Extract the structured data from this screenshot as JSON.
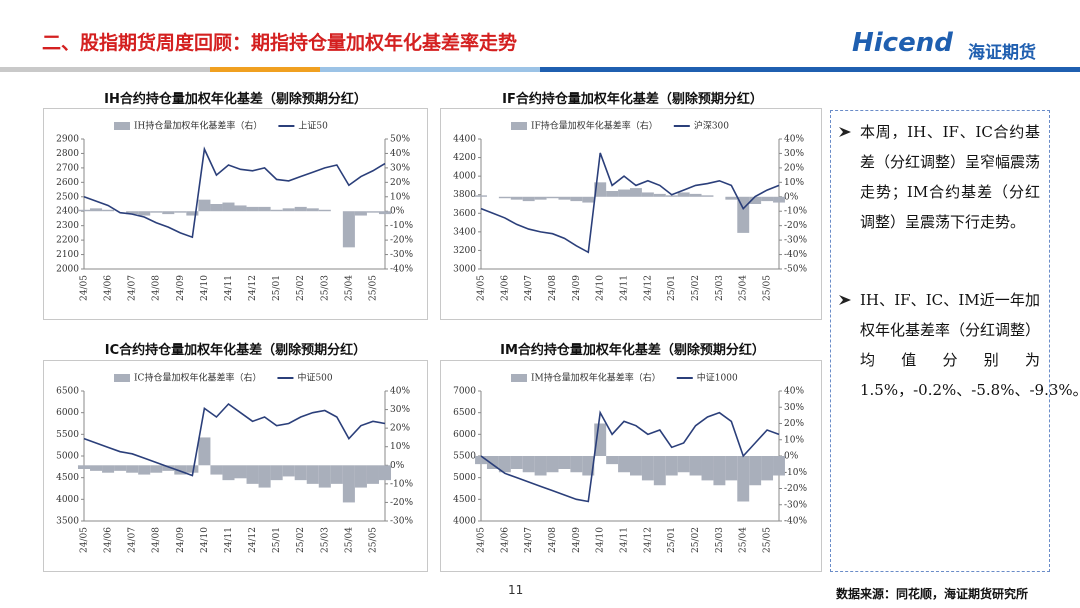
{
  "header": {
    "title": "二、股指期货周度回顾：期指持仓量加权年化基差率走势",
    "logo_en": "Hicend",
    "logo_cn": "海证期货"
  },
  "sidebar": {
    "bullets": [
      "本周，IH、IF、IC合约基差（分红调整）呈窄幅震荡走势；IM合约基差（分红调整）呈震荡下行走势。",
      "IH、IF、IC、IM近一年加权年化基差率（分红调整）均值分别为1.5%，-0.2%、-5.8%、-9.3%。"
    ]
  },
  "footer": {
    "page": "11",
    "source": "数据来源：同花顺，海证期货研究所"
  },
  "chart_data": [
    {
      "type": "combo",
      "title": "IH合约持仓量加权年化基差（剔除预期分红）",
      "categories": [
        "24/05",
        null,
        "24/06",
        null,
        "24/07",
        null,
        "24/08",
        null,
        "24/09",
        null,
        "24/10",
        null,
        "24/11",
        null,
        "24/12",
        null,
        "25/01",
        null,
        "25/02",
        null,
        "25/03",
        null,
        "25/04",
        null,
        "25/05",
        null
      ],
      "series": [
        {
          "name": "IH持仓量加权年化基差率（右）",
          "color": "#a9afbb",
          "axis": "y2",
          "values": [
            1,
            2,
            1,
            0,
            -2,
            -3,
            -1,
            -2,
            -1,
            -3,
            8,
            5,
            6,
            4,
            3,
            3,
            1,
            2,
            3,
            2,
            1,
            0,
            -25,
            -3,
            -1,
            -2
          ]
        },
        {
          "name": "上证50",
          "color": "#2b3f7a",
          "values": [
            2500,
            2470,
            2440,
            2390,
            2380,
            2360,
            2320,
            2290,
            2250,
            2220,
            2830,
            2650,
            2720,
            2690,
            2680,
            2700,
            2620,
            2610,
            2640,
            2670,
            2700,
            2720,
            2580,
            2640,
            2680,
            2730
          ]
        }
      ],
      "ylim": [
        2000,
        2900
      ],
      "yticks": [
        2000,
        2100,
        2200,
        2300,
        2400,
        2500,
        2600,
        2700,
        2800,
        2900
      ],
      "y2lim": [
        -40,
        50
      ],
      "y2ticks": [
        {
          "value": -40,
          "label": "-40%"
        },
        {
          "value": -30,
          "label": "-30%"
        },
        {
          "value": -20,
          "label": "-20%"
        },
        {
          "value": -10,
          "label": "-10%"
        },
        {
          "value": 0,
          "label": "0%"
        },
        {
          "value": 10,
          "label": "10%"
        },
        {
          "value": 20,
          "label": "20%"
        },
        {
          "value": 30,
          "label": "30%"
        },
        {
          "value": 40,
          "label": "40%"
        },
        {
          "value": 50,
          "label": "50%"
        }
      ]
    },
    {
      "type": "combo",
      "title": "IF合约持仓量加权年化基差（剔除预期分红）",
      "categories": [
        "24/05",
        null,
        "24/06",
        null,
        "24/07",
        null,
        "24/08",
        null,
        "24/09",
        null,
        "24/10",
        null,
        "24/11",
        null,
        "24/12",
        null,
        "25/01",
        null,
        "25/02",
        null,
        "25/03",
        null,
        "25/04",
        null,
        "25/05",
        null
      ],
      "series": [
        {
          "name": "IF持仓量加权年化基差率（右）",
          "color": "#a9afbb",
          "axis": "y2",
          "values": [
            1,
            0,
            -1,
            -2,
            -3,
            -2,
            -1,
            -2,
            -3,
            -4,
            10,
            4,
            5,
            6,
            3,
            2,
            1,
            3,
            2,
            1,
            0,
            -2,
            -25,
            -5,
            -3,
            -4
          ]
        },
        {
          "name": "沪深300",
          "color": "#2b3f7a",
          "values": [
            3650,
            3600,
            3550,
            3480,
            3430,
            3400,
            3380,
            3330,
            3250,
            3180,
            4250,
            3900,
            4000,
            3900,
            3950,
            3900,
            3800,
            3850,
            3900,
            3920,
            3950,
            3900,
            3650,
            3780,
            3850,
            3900
          ]
        }
      ],
      "ylim": [
        3000,
        4400
      ],
      "yticks": [
        3000,
        3200,
        3400,
        3600,
        3800,
        4000,
        4200,
        4400
      ],
      "y2lim": [
        -50,
        40
      ],
      "y2ticks": [
        {
          "value": -50,
          "label": "-50%"
        },
        {
          "value": -40,
          "label": "-40%"
        },
        {
          "value": -30,
          "label": "-30%"
        },
        {
          "value": -20,
          "label": "-20%"
        },
        {
          "value": -10,
          "label": "-10%"
        },
        {
          "value": 0,
          "label": "0%"
        },
        {
          "value": 10,
          "label": "10%"
        },
        {
          "value": 20,
          "label": "20%"
        },
        {
          "value": 30,
          "label": "30%"
        },
        {
          "value": 40,
          "label": "40%"
        }
      ]
    },
    {
      "type": "combo",
      "title": "IC合约持仓量加权年化基差（剔除预期分红）",
      "categories": [
        "24/05",
        null,
        "24/06",
        null,
        "24/07",
        null,
        "24/08",
        null,
        "24/09",
        null,
        "24/10",
        null,
        "24/11",
        null,
        "24/12",
        null,
        "25/01",
        null,
        "25/02",
        null,
        "25/03",
        null,
        "25/04",
        null,
        "25/05",
        null
      ],
      "series": [
        {
          "name": "IC持仓量加权年化基差率（右）",
          "color": "#a9afbb",
          "axis": "y2",
          "values": [
            -2,
            -3,
            -4,
            -3,
            -4,
            -5,
            -4,
            -3,
            -5,
            -4,
            15,
            -5,
            -8,
            -7,
            -10,
            -12,
            -8,
            -6,
            -8,
            -10,
            -12,
            -10,
            -20,
            -12,
            -10,
            -8
          ]
        },
        {
          "name": "中证500",
          "color": "#2b3f7a",
          "values": [
            5400,
            5300,
            5200,
            5100,
            5050,
            4950,
            4850,
            4750,
            4650,
            4550,
            6100,
            5900,
            6200,
            6000,
            5800,
            5900,
            5700,
            5750,
            5900,
            6000,
            6050,
            5900,
            5400,
            5700,
            5800,
            5750
          ]
        }
      ],
      "ylim": [
        3500,
        6500
      ],
      "yticks": [
        3500,
        4000,
        4500,
        5000,
        5500,
        6000,
        6500
      ],
      "y2lim": [
        -30,
        40
      ],
      "y2ticks": [
        {
          "value": -30,
          "label": "-30%"
        },
        {
          "value": -20,
          "label": "-20%"
        },
        {
          "value": -10,
          "label": "-10%"
        },
        {
          "value": 0,
          "label": "0%"
        },
        {
          "value": 10,
          "label": "10%"
        },
        {
          "value": 20,
          "label": "20%"
        },
        {
          "value": 30,
          "label": "30%"
        },
        {
          "value": 40,
          "label": "40%"
        }
      ]
    },
    {
      "type": "combo",
      "title": "IM合约持仓量加权年化基差（剔除预期分红）",
      "categories": [
        "24/05",
        null,
        "24/06",
        null,
        "24/07",
        null,
        "24/08",
        null,
        "24/09",
        null,
        "24/10",
        null,
        "24/11",
        null,
        "24/12",
        null,
        "25/01",
        null,
        "25/02",
        null,
        "25/03",
        null,
        "25/04",
        null,
        "25/05",
        null
      ],
      "series": [
        {
          "name": "IM持仓量加权年化基差率（右）",
          "color": "#a9afbb",
          "axis": "y2",
          "values": [
            -5,
            -8,
            -10,
            -8,
            -10,
            -12,
            -10,
            -8,
            -10,
            -12,
            20,
            -5,
            -10,
            -12,
            -15,
            -18,
            -12,
            -10,
            -12,
            -15,
            -18,
            -15,
            -28,
            -18,
            -15,
            -12
          ]
        },
        {
          "name": "中证1000",
          "color": "#2b3f7a",
          "values": [
            5500,
            5300,
            5100,
            5000,
            4900,
            4800,
            4700,
            4600,
            4500,
            4450,
            6500,
            6000,
            6300,
            6200,
            6000,
            6100,
            5700,
            5800,
            6200,
            6400,
            6500,
            6300,
            5500,
            5800,
            6100,
            6000
          ]
        }
      ],
      "ylim": [
        4000,
        7000
      ],
      "yticks": [
        4000,
        4500,
        5000,
        5500,
        6000,
        6500,
        7000
      ],
      "y2lim": [
        -40,
        40
      ],
      "y2ticks": [
        {
          "value": -40,
          "label": "-40%"
        },
        {
          "value": -30,
          "label": "-30%"
        },
        {
          "value": -20,
          "label": "-20%"
        },
        {
          "value": -10,
          "label": "-10%"
        },
        {
          "value": 0,
          "label": "0%"
        },
        {
          "value": 10,
          "label": "10%"
        },
        {
          "value": 20,
          "label": "20%"
        },
        {
          "value": 30,
          "label": "30%"
        },
        {
          "value": 40,
          "label": "40%"
        }
      ]
    }
  ]
}
